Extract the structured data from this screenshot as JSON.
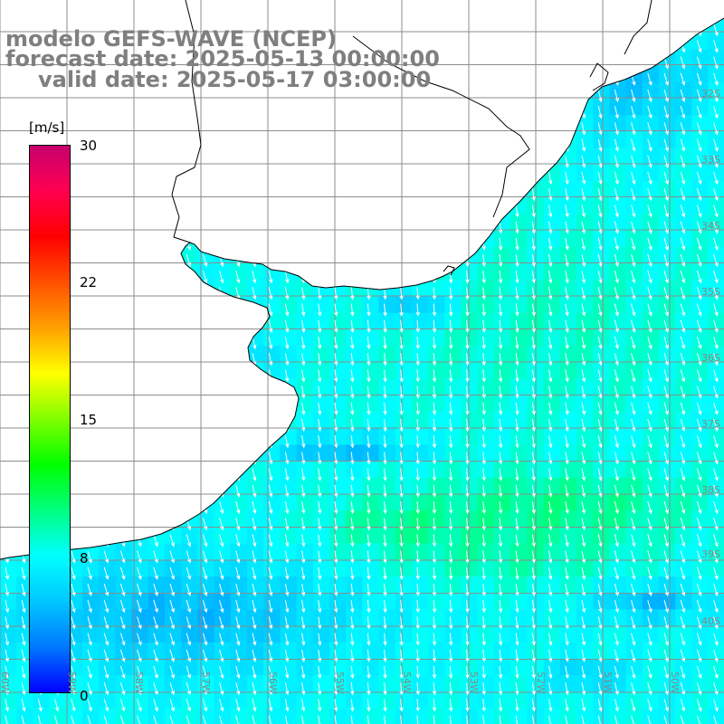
{
  "title": {
    "line1": "modelo GEFS-WAVE (NCEP)",
    "line2": "forecast date: 2025-05-13 00:00:00",
    "line3": "valid date: 2025-05-17 03:00:00"
  },
  "colorbar": {
    "unit": "[m/s]",
    "ticks": [
      "30",
      "22",
      "15",
      "8",
      "0"
    ],
    "range": [
      0,
      30
    ],
    "colors": [
      "#0000ff",
      "#0078ff",
      "#00c8ff",
      "#00ffff",
      "#00ff80",
      "#00ff00",
      "#80ff00",
      "#ffff00",
      "#ffa000",
      "#ff5000",
      "#ff0000",
      "#ff0050",
      "#c8006e"
    ]
  },
  "lat_labels": [
    "32S",
    "33S",
    "34S",
    "35S",
    "36S",
    "37S",
    "38S",
    "39S",
    "40S"
  ],
  "lon_labels": [
    "60W",
    "59W",
    "58W",
    "57W",
    "56W",
    "55W",
    "54W",
    "53W",
    "52W",
    "51W",
    "50W"
  ],
  "map_colors": {
    "land": "#ffffff",
    "coast": "#000000",
    "grid": "#8c8c8c",
    "arrow": "#ffffff"
  }
}
